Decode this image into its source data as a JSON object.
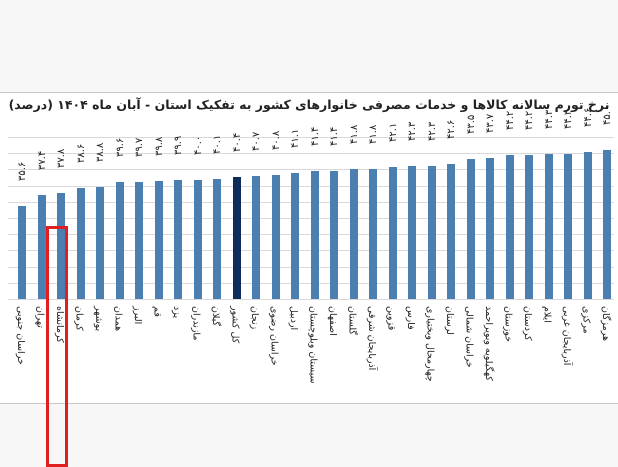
{
  "title": "نرخ تورم سالانه کالاها و خدمات مصرفی خانوارهای کشور به تفکیک استان - آبان ماه ۱۴۰۴ (درصد)",
  "highlight_index": 2,
  "total_index": 11,
  "colors": {
    "bar": "#4a7fb0",
    "total_bar": "#0f2d5a",
    "highlight": "#e02020"
  },
  "chart_data": {
    "type": "bar",
    "title": "نرخ تورم سالانه کالاها و خدمات مصرفی خانوارهای کشور به تفکیک استان - آبان ماه ۱۴۰۴ (درصد)",
    "xlabel": "",
    "ylabel": "درصد",
    "categories": [
      "خراسان جنوبی",
      "تهران",
      "کرمانشاه",
      "کرمان",
      "بوشهر",
      "همدان",
      "البرز",
      "قم",
      "یزد",
      "مازندران",
      "گیلان",
      "کل کشور",
      "زنجان",
      "خراسان رضوی",
      "اردبیل",
      "سیستان وبلوچستان",
      "اصفهان",
      "گلستان",
      "آذربایجان شرقی",
      "قزوین",
      "فارس",
      "چهارمحال وبختیاری",
      "لرستان",
      "خراسان شمالی",
      "کهگیلویه وبویراحمد",
      "خوزستان",
      "کردستان",
      "ایلام",
      "آذربایجان غربی",
      "مرکزی",
      "هرمزگان"
    ],
    "values": [
      35.6,
      37.4,
      37.8,
      38.6,
      38.8,
      39.6,
      39.7,
      39.8,
      39.9,
      40.0,
      40.1,
      40.4,
      40.7,
      40.8,
      41.1,
      41.4,
      41.4,
      41.8,
      41.8,
      42.1,
      42.3,
      42.3,
      42.6,
      43.5,
      43.7,
      44.2,
      44.2,
      44.3,
      44.3,
      44.6,
      45.0
    ],
    "value_labels": [
      "۳۵.۶",
      "۳۷.۴",
      "۳۷.۸",
      "۳۸.۶",
      "۳۸.۸",
      "۳۹.۶",
      "۳۹.۷",
      "۳۹.۸",
      "۳۹.۹",
      "۴۰.۰",
      "۴۰.۱",
      "۴۰.۴",
      "۴۰.۷",
      "۴۰.۸",
      "۴۱.۱",
      "۴۱.۴",
      "۴۱.۴",
      "۴۱.۸",
      "۴۱.۸",
      "۴۲.۱",
      "۴۲.۳",
      "۴۲.۳",
      "۴۲.۶",
      "۴۳.۵",
      "۴۳.۷",
      "۴۴.۲",
      "۴۴.۲",
      "۴۴.۳",
      "۴۴.۳",
      "۴۴.۶",
      "۴۵.۰"
    ],
    "grid": true,
    "legend": "none",
    "annotations": [
      "کرمانشاه highlighted with red box",
      "کل کشور bar in dark navy"
    ]
  }
}
